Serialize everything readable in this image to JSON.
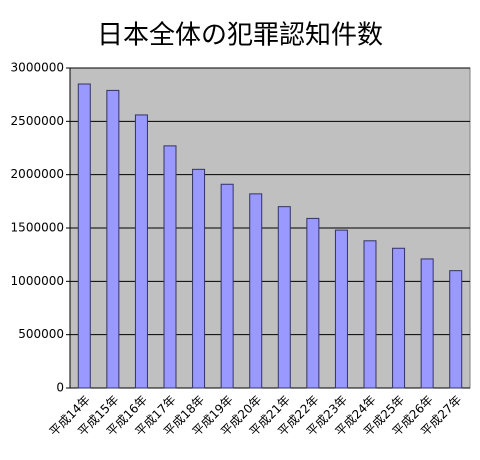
{
  "chart_data": {
    "type": "bar",
    "title": "日本全体の犯罪認知件数",
    "categories": [
      "平成14年",
      "平成15年",
      "平成16年",
      "平成17年",
      "平成18年",
      "平成19年",
      "平成20年",
      "平成21年",
      "平成22年",
      "平成23年",
      "平成24年",
      "平成25年",
      "平成26年",
      "平成27年"
    ],
    "values": [
      2850000,
      2790000,
      2560000,
      2270000,
      2050000,
      1910000,
      1820000,
      1700000,
      1590000,
      1480000,
      1380000,
      1310000,
      1210000,
      1100000
    ],
    "color": "#9999ff",
    "ylim": [
      0,
      3000000
    ],
    "yticks": [
      0,
      500000,
      1000000,
      1500000,
      2000000,
      2500000,
      3000000
    ],
    "grid": true
  }
}
